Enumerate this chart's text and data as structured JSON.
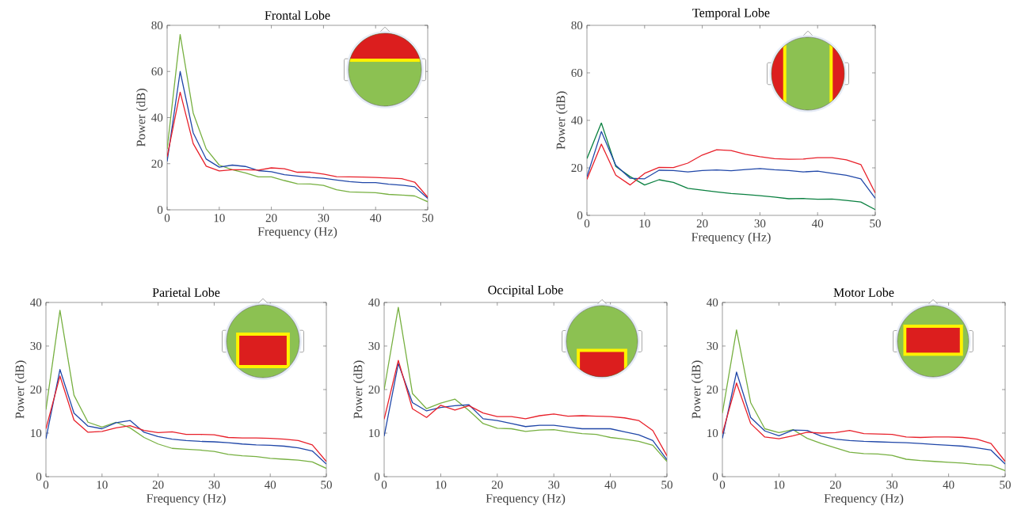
{
  "chart_data": [
    {
      "type": "line",
      "title": "Frontal Lobe",
      "xlabel": "Frequency (Hz)",
      "ylabel": "Power (dB)",
      "x": [
        0,
        2.5,
        5,
        7.5,
        10,
        12.5,
        15,
        17.5,
        20,
        22.5,
        25,
        27.5,
        30,
        32.5,
        35,
        37.5,
        40,
        42.5,
        45,
        47.5,
        50
      ],
      "xlim": [
        0,
        50
      ],
      "ylim": [
        0,
        80
      ],
      "xticks": [
        0,
        10,
        20,
        30,
        40,
        50
      ],
      "yticks": [
        0,
        20,
        40,
        60,
        80
      ],
      "grid": false,
      "legend": false,
      "marker": "none",
      "line_style": "solid",
      "series": [
        {
          "color": "#77b041",
          "values": [
            26.4,
            76,
            42,
            26.4,
            19.4,
            17.4,
            16,
            14.3,
            14.3,
            12.7,
            11.3,
            11.2,
            10.6,
            8.7,
            7.8,
            7.6,
            7.4,
            6.7,
            6.4,
            6,
            3.5
          ]
        },
        {
          "color": "#2047a8",
          "values": [
            21,
            60,
            33.4,
            22,
            18.5,
            19.4,
            18.8,
            17,
            16.5,
            15.2,
            14.6,
            14,
            13.7,
            12.9,
            12.2,
            11.8,
            11.8,
            11.1,
            10.7,
            10,
            5
          ]
        },
        {
          "color": "#e8202a",
          "values": [
            23,
            51,
            28.7,
            18.9,
            16.9,
            17.4,
            17.4,
            17.2,
            18.2,
            17.8,
            16.3,
            16.3,
            15.5,
            14.4,
            14.3,
            14.2,
            14,
            13.8,
            13.5,
            12,
            5.5
          ]
        }
      ]
    },
    {
      "type": "line",
      "title": "Temporal Lobe",
      "xlabel": "Frequency (Hz)",
      "ylabel": "Power (dB)",
      "x": [
        0,
        2.5,
        5,
        7.5,
        10,
        12.5,
        15,
        17.5,
        20,
        22.5,
        25,
        27.5,
        30,
        32.5,
        35,
        37.5,
        40,
        42.5,
        45,
        47.5,
        50
      ],
      "xlim": [
        0,
        50
      ],
      "ylim": [
        0,
        80
      ],
      "xticks": [
        0,
        10,
        20,
        30,
        40,
        50
      ],
      "yticks": [
        0,
        20,
        40,
        60,
        80
      ],
      "grid": false,
      "legend": false,
      "marker": "none",
      "line_style": "solid",
      "series": [
        {
          "color": "#0a8040",
          "values": [
            23.9,
            38.9,
            20.6,
            16.3,
            12.8,
            15,
            13.9,
            11.4,
            10.6,
            9.9,
            9.2,
            8.8,
            8.3,
            7.7,
            7,
            7.1,
            6.8,
            6.9,
            6.3,
            5.6,
            2.4
          ]
        },
        {
          "color": "#2047a8",
          "values": [
            16.3,
            35.3,
            21.1,
            15.6,
            15.4,
            19,
            18.9,
            18.3,
            18.9,
            19.1,
            18.8,
            19.3,
            19.7,
            19.2,
            18.9,
            18.3,
            18.6,
            17.7,
            16.9,
            15.4,
            7.2
          ]
        },
        {
          "color": "#e8202a",
          "values": [
            15.2,
            30,
            16.9,
            12.8,
            17.7,
            20.2,
            20.1,
            22,
            25.4,
            27.6,
            27.3,
            25.7,
            24.7,
            23.9,
            23.6,
            23.7,
            24.3,
            24.3,
            23.4,
            21.4,
            9.4
          ]
        }
      ]
    },
    {
      "type": "line",
      "title": "Parietal Lobe",
      "xlabel": "Frequency (Hz)",
      "ylabel": "Power (dB)",
      "x": [
        0,
        2.5,
        5,
        7.5,
        10,
        12.5,
        15,
        17.5,
        20,
        22.5,
        25,
        27.5,
        30,
        32.5,
        35,
        37.5,
        40,
        42.5,
        45,
        47.5,
        50
      ],
      "xlim": [
        0,
        50
      ],
      "ylim": [
        0,
        40
      ],
      "xticks": [
        0,
        10,
        20,
        30,
        40,
        50
      ],
      "yticks": [
        0,
        10,
        20,
        30,
        40
      ],
      "grid": false,
      "legend": false,
      "marker": "none",
      "line_style": "solid",
      "series": [
        {
          "color": "#77b041",
          "values": [
            15.4,
            38.2,
            18.7,
            12.5,
            11.4,
            12.5,
            11.2,
            9,
            7.5,
            6.5,
            6.3,
            6.1,
            5.8,
            5.1,
            4.8,
            4.6,
            4.2,
            4,
            3.8,
            3.4,
            1.9
          ]
        },
        {
          "color": "#2047a8",
          "values": [
            8.7,
            24.6,
            14.6,
            11.6,
            11,
            12.4,
            12.9,
            10.2,
            9.2,
            8.6,
            8.3,
            8.1,
            8,
            7.8,
            7.5,
            7.3,
            7.2,
            7,
            6.6,
            5.9,
            2.9
          ]
        },
        {
          "color": "#e8202a",
          "values": [
            11,
            23.1,
            13,
            10.2,
            10.4,
            11.2,
            11.7,
            10.6,
            10.1,
            10.3,
            9.7,
            9.7,
            9.6,
            9,
            8.9,
            8.9,
            8.8,
            8.6,
            8.3,
            7.3,
            3.5
          ]
        }
      ]
    },
    {
      "type": "line",
      "title": "Occipital Lobe",
      "xlabel": "Frequency (Hz)",
      "ylabel": "Power (dB)",
      "x": [
        0,
        2.5,
        5,
        7.5,
        10,
        12.5,
        15,
        17.5,
        20,
        22.5,
        25,
        27.5,
        30,
        32.5,
        35,
        37.5,
        40,
        42.5,
        45,
        47.5,
        50
      ],
      "xlim": [
        0,
        50
      ],
      "ylim": [
        0,
        40
      ],
      "xticks": [
        0,
        10,
        20,
        30,
        40,
        50
      ],
      "yticks": [
        0,
        10,
        20,
        30,
        40
      ],
      "grid": false,
      "legend": false,
      "marker": "none",
      "line_style": "solid",
      "series": [
        {
          "color": "#77b041",
          "values": [
            20,
            38.9,
            19.1,
            15.6,
            16.9,
            17.8,
            15.2,
            12.2,
            11.1,
            11,
            10.4,
            10.7,
            10.8,
            10.3,
            9.9,
            9.7,
            9,
            8.6,
            8.1,
            7.2,
            3.5
          ]
        },
        {
          "color": "#2047a8",
          "values": [
            9.3,
            26,
            17,
            15.1,
            15.9,
            16.3,
            16.5,
            13.3,
            12.9,
            12.2,
            11.5,
            11.8,
            11.8,
            11.4,
            11,
            11,
            11,
            10.3,
            9.6,
            8.3,
            3.9
          ]
        },
        {
          "color": "#e8202a",
          "values": [
            13.2,
            26.7,
            15.6,
            13.6,
            16.4,
            15.3,
            16.3,
            14.6,
            13.8,
            13.8,
            13.3,
            14,
            14.4,
            13.9,
            14,
            13.9,
            13.8,
            13.5,
            12.9,
            10.6,
            4.8
          ]
        }
      ]
    },
    {
      "type": "line",
      "title": "Motor Lobe",
      "xlabel": "Frequency (Hz)",
      "ylabel": "Power (dB)",
      "x": [
        0,
        2.5,
        5,
        7.5,
        10,
        12.5,
        15,
        17.5,
        20,
        22.5,
        25,
        27.5,
        30,
        32.5,
        35,
        37.5,
        40,
        42.5,
        45,
        47.5,
        50
      ],
      "xlim": [
        0,
        50
      ],
      "ylim": [
        0,
        40
      ],
      "xticks": [
        0,
        10,
        20,
        30,
        40,
        50
      ],
      "yticks": [
        0,
        10,
        20,
        30,
        40
      ],
      "grid": false,
      "legend": false,
      "marker": "none",
      "line_style": "solid",
      "series": [
        {
          "color": "#77b041",
          "values": [
            14.6,
            33.7,
            17,
            11,
            10.1,
            10.8,
            8.8,
            7.6,
            6.6,
            5.6,
            5.3,
            5.2,
            4.9,
            4,
            3.7,
            3.5,
            3.3,
            3.1,
            2.8,
            2.6,
            1.4
          ]
        },
        {
          "color": "#2047a8",
          "values": [
            8.8,
            24,
            13.6,
            10.5,
            9.4,
            10.7,
            10.6,
            9.3,
            8.6,
            8.3,
            8.1,
            8,
            7.9,
            7.8,
            7.6,
            7.4,
            7.2,
            7,
            6.6,
            6.1,
            2.9
          ]
        },
        {
          "color": "#e8202a",
          "values": [
            9.9,
            21.5,
            12.2,
            9.1,
            8.7,
            9.4,
            10.2,
            10,
            10.1,
            10.6,
            9.9,
            9.8,
            9.7,
            9.1,
            9,
            9.1,
            9.1,
            9,
            8.6,
            7.6,
            3.5
          ]
        }
      ]
    }
  ]
}
